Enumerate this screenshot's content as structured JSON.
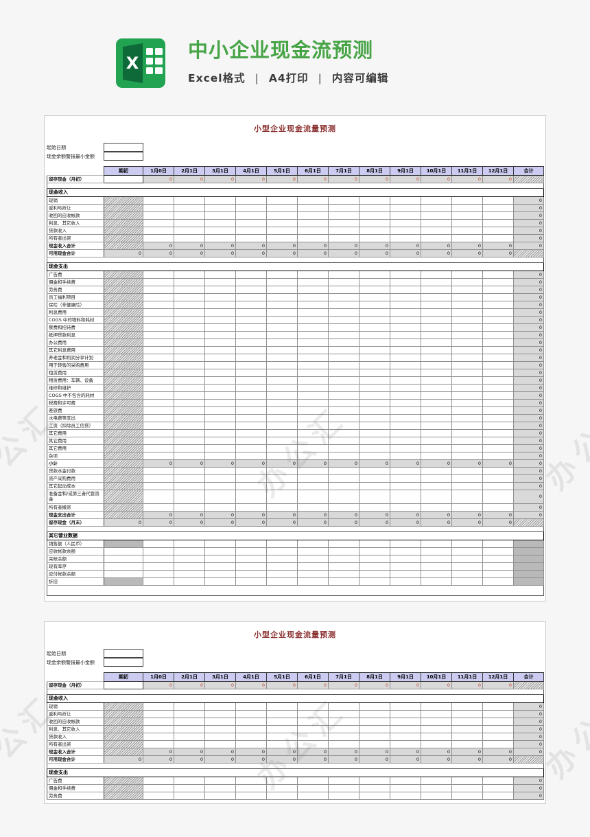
{
  "header": {
    "title": "中小企业现金流预测",
    "subtitle": [
      "Excel格式",
      "A4打印",
      "内容可编辑"
    ],
    "separator": "|",
    "icon": "excel-icon",
    "icon_letter": "X"
  },
  "colors": {
    "brand_green": "#47a447",
    "sheet_title_maroon": "#8b3030",
    "header_row_bg": "#ccccf2",
    "zero_red": "#c0462b"
  },
  "watermark": {
    "text": "办公汇"
  },
  "sheet_template": {
    "title": "小型企业现金流量预测",
    "fields": [
      "起始日期",
      "现金余额警报最小金额"
    ],
    "columns": [
      "期初",
      "1月0日",
      "2月1日",
      "3月1日",
      "4月1日",
      "5月1日",
      "6月1日",
      "7月1日",
      "8月1日",
      "9月1日",
      "10月1日",
      "11月1日",
      "12月1日",
      "合计"
    ],
    "zero": "0"
  },
  "sheet1": {
    "rows": [
      {
        "label": "留存现金（月初）",
        "type": "hand"
      },
      {
        "type": "gap"
      },
      {
        "label": "现金收入",
        "type": "band"
      },
      {
        "label": "现销",
        "type": "inc"
      },
      {
        "label": "返利与折让",
        "type": "inc"
      },
      {
        "label": "收回的应收帐款",
        "type": "inc"
      },
      {
        "label": "利息、其它收入",
        "type": "inc"
      },
      {
        "label": "贷款收入",
        "type": "inc"
      },
      {
        "label": "所有者出资",
        "type": "inc"
      },
      {
        "label": "现金收入合计",
        "type": "tot"
      },
      {
        "label": "可用现金合计",
        "type": "avail"
      },
      {
        "type": "gap"
      },
      {
        "label": "现金支出",
        "type": "band"
      },
      {
        "label": "广告费",
        "type": "inc"
      },
      {
        "label": "佣金和手续费",
        "type": "inc"
      },
      {
        "label": "劳务费",
        "type": "inc"
      },
      {
        "label": "员工福利项目",
        "type": "inc"
      },
      {
        "label": "保险（非健康险）",
        "type": "inc"
      },
      {
        "label": "利息费用",
        "type": "inc"
      },
      {
        "label": "COGS 中的物料和耗材",
        "type": "inc"
      },
      {
        "label": "餐费和招待费",
        "type": "inc"
      },
      {
        "label": "抵押贷款利息",
        "type": "inc"
      },
      {
        "label": "办公费用",
        "type": "inc"
      },
      {
        "label": "其它利息费用",
        "type": "inc"
      },
      {
        "label": "养老金和利润分享计划",
        "type": "inc"
      },
      {
        "label": "用于转售的采购费用",
        "type": "inc"
      },
      {
        "label": "租赁费用",
        "type": "inc"
      },
      {
        "label": "租赁费用：车辆、设备",
        "type": "inc"
      },
      {
        "label": "维修和维护",
        "type": "inc"
      },
      {
        "label": "COGS 中不包含的耗材",
        "type": "inc"
      },
      {
        "label": "税费和许可费",
        "type": "inc"
      },
      {
        "label": "差旅费",
        "type": "inc"
      },
      {
        "label": "水电费等支出",
        "type": "inc"
      },
      {
        "label": "工资（扣除员工信贷）",
        "type": "inc"
      },
      {
        "label": "其它费用",
        "type": "inc"
      },
      {
        "label": "其它费用",
        "type": "inc"
      },
      {
        "label": "其它费用",
        "type": "inc"
      },
      {
        "label": "杂项",
        "type": "inc"
      },
      {
        "label": "小计",
        "type": "tot"
      },
      {
        "label": "贷款本金付款",
        "type": "inc"
      },
      {
        "label": "资产采购费用",
        "type": "inc"
      },
      {
        "label": "其它起动成本",
        "type": "inc"
      },
      {
        "label": "准备金和/或第三者代管资金",
        "type": "inc2"
      },
      {
        "label": "所有者撤资",
        "type": "inc"
      },
      {
        "label": "现金支出合计",
        "type": "tot"
      },
      {
        "label": "留存现金（月末）",
        "type": "avail"
      },
      {
        "type": "gap"
      },
      {
        "label": "其它营业数据",
        "type": "band"
      },
      {
        "label": "销售额（人民币）",
        "type": "othg"
      },
      {
        "label": "应收帐款余额",
        "type": "oth"
      },
      {
        "label": "呆帐余额",
        "type": "oth"
      },
      {
        "label": "现有库存",
        "type": "oth"
      },
      {
        "label": "应付帐款余额",
        "type": "oth"
      },
      {
        "label": "折旧",
        "type": "othg"
      },
      {
        "type": "gap2"
      }
    ]
  },
  "sheet2": {
    "rows": [
      {
        "label": "留存现金（月初）",
        "type": "hand"
      },
      {
        "type": "gap"
      },
      {
        "label": "现金收入",
        "type": "band"
      },
      {
        "label": "现销",
        "type": "inc"
      },
      {
        "label": "返利与折让",
        "type": "inc"
      },
      {
        "label": "收回的应收帐款",
        "type": "inc"
      },
      {
        "label": "利息、其它收入",
        "type": "inc"
      },
      {
        "label": "贷款收入",
        "type": "inc"
      },
      {
        "label": "所有者出资",
        "type": "inc"
      },
      {
        "label": "现金收入合计",
        "type": "tot"
      },
      {
        "label": "可用现金合计",
        "type": "avail"
      },
      {
        "type": "gap"
      },
      {
        "label": "现金支出",
        "type": "band"
      },
      {
        "label": "广告费",
        "type": "inc"
      },
      {
        "label": "佣金和手续费",
        "type": "inc"
      },
      {
        "label": "劳务费",
        "type": "inc"
      }
    ]
  }
}
